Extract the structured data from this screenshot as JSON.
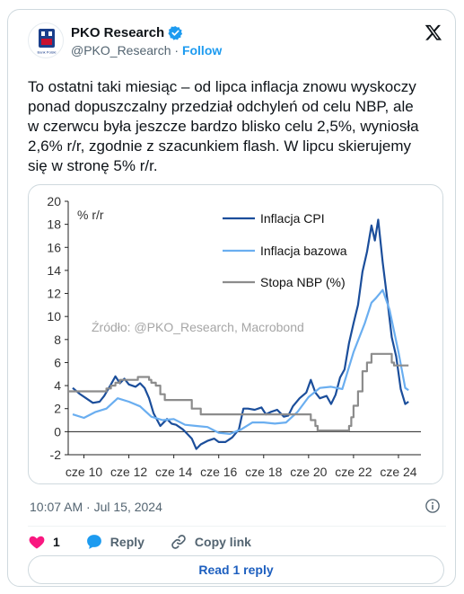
{
  "author": {
    "name": "PKO Research",
    "handle": "@PKO_Research",
    "separator": "·",
    "follow_label": "Follow",
    "avatar_caption": "Bank Polski"
  },
  "tweet": {
    "text": "To ostatni taki miesiąc – od lipca inflacja znowu wyskoczy\nponad dopuszczalny przedział odchyleń od celu NBP, ale\nw czerwcu była jeszcze bardzo blisko celu 2,5%, wyniosła\n2,6% r/r, zgodnie z szacunkiem flash. W lipcu skierujemy\nsię w stronę 5% r/r."
  },
  "colors": {
    "cpi": "#1b4e9b",
    "core": "#6aaef0",
    "rate": "#8c8c8c",
    "link": "#1d9bf0",
    "heart": "#f91880"
  },
  "chart_data": {
    "type": "line",
    "unit_label": "% r/r",
    "source_note": "Źródło: @PKO_Research, Macrobond",
    "ylim": [
      -2,
      20
    ],
    "yticks": [
      "20",
      "18",
      "16",
      "14",
      "12",
      "10",
      "8",
      "6",
      "4",
      "2",
      "0",
      "-2"
    ],
    "xlim": [
      2009.3,
      2025
    ],
    "xticks": [
      {
        "x": 2010,
        "label": "cze 10"
      },
      {
        "x": 2012,
        "label": "cze 12"
      },
      {
        "x": 2014,
        "label": "cze 14"
      },
      {
        "x": 2016,
        "label": "cze 16"
      },
      {
        "x": 2018,
        "label": "cze 18"
      },
      {
        "x": 2020,
        "label": "cze 20"
      },
      {
        "x": 2022,
        "label": "cze 22"
      },
      {
        "x": 2024,
        "label": "cze 24"
      }
    ],
    "legend_position": "top-right",
    "series": [
      {
        "name": "Inflacja CPI",
        "color": "#1b4e9b",
        "width": 2.2,
        "x": [
          2009.5,
          2009.8,
          2010.1,
          2010.4,
          2010.7,
          2010.9,
          2011.2,
          2011.4,
          2011.6,
          2011.8,
          2012.0,
          2012.3,
          2012.5,
          2012.7,
          2012.9,
          2013.1,
          2013.4,
          2013.7,
          2013.9,
          2014.1,
          2014.4,
          2014.6,
          2014.8,
          2015.0,
          2015.2,
          2015.5,
          2015.8,
          2016.0,
          2016.3,
          2016.6,
          2016.9,
          2017.1,
          2017.3,
          2017.6,
          2017.9,
          2018.1,
          2018.3,
          2018.6,
          2018.9,
          2019.1,
          2019.3,
          2019.6,
          2019.9,
          2020.1,
          2020.3,
          2020.5,
          2020.8,
          2021.0,
          2021.2,
          2021.4,
          2021.6,
          2021.8,
          2022.0,
          2022.2,
          2022.4,
          2022.6,
          2022.8,
          2022.95,
          2023.1,
          2023.3,
          2023.5,
          2023.7,
          2023.9,
          2024.1,
          2024.3,
          2024.45
        ],
        "y": [
          3.8,
          3.3,
          2.9,
          2.5,
          2.6,
          3.1,
          4.1,
          4.8,
          4.2,
          4.6,
          4.1,
          3.9,
          4.2,
          3.8,
          2.9,
          1.6,
          0.5,
          1.1,
          0.7,
          0.6,
          0.2,
          -0.2,
          -0.6,
          -1.5,
          -1.1,
          -0.8,
          -0.6,
          -0.9,
          -0.9,
          -0.5,
          0.2,
          2.0,
          2.0,
          1.9,
          2.1,
          1.5,
          1.7,
          1.9,
          1.3,
          1.4,
          2.2,
          2.9,
          3.4,
          4.5,
          3.4,
          2.9,
          3.1,
          2.4,
          3.2,
          4.7,
          5.4,
          7.7,
          9.4,
          11.0,
          13.9,
          15.6,
          17.9,
          16.6,
          18.4,
          14.7,
          11.5,
          8.2,
          6.5,
          3.7,
          2.4,
          2.6
        ]
      },
      {
        "name": "Inflacja bazowa",
        "color": "#6aaef0",
        "width": 2.2,
        "x": [
          2009.5,
          2010.0,
          2010.5,
          2011.0,
          2011.5,
          2012.0,
          2012.5,
          2013.0,
          2013.5,
          2014.0,
          2014.5,
          2015.0,
          2015.5,
          2016.0,
          2016.5,
          2017.0,
          2017.5,
          2018.0,
          2018.5,
          2019.0,
          2019.5,
          2020.0,
          2020.5,
          2021.0,
          2021.5,
          2022.0,
          2022.5,
          2022.8,
          2023.0,
          2023.3,
          2023.6,
          2024.0,
          2024.3,
          2024.45
        ],
        "y": [
          1.5,
          1.2,
          1.7,
          2.0,
          2.9,
          2.6,
          2.2,
          1.3,
          1.0,
          1.1,
          0.6,
          0.5,
          0.4,
          -0.1,
          -0.2,
          0.2,
          0.8,
          0.8,
          0.7,
          0.8,
          1.7,
          3.0,
          3.8,
          3.9,
          3.7,
          6.9,
          9.4,
          11.2,
          11.6,
          12.3,
          10.6,
          6.9,
          3.8,
          3.6
        ]
      },
      {
        "name": "Stopa NBP (%)",
        "color": "#8c8c8c",
        "width": 2.2,
        "step": true,
        "x": [
          2009.3,
          2011.0,
          2011.2,
          2011.4,
          2011.6,
          2012.4,
          2012.9,
          2013.0,
          2013.2,
          2013.4,
          2013.6,
          2014.8,
          2015.2,
          2020.1,
          2020.3,
          2020.4,
          2021.8,
          2021.9,
          2022.0,
          2022.2,
          2022.4,
          2022.6,
          2022.8,
          2023.7,
          2023.8,
          2024.45
        ],
        "y": [
          3.5,
          3.75,
          4.0,
          4.25,
          4.5,
          4.75,
          4.5,
          4.25,
          4.0,
          3.25,
          2.75,
          2.0,
          1.5,
          1.0,
          0.5,
          0.1,
          0.5,
          1.25,
          2.25,
          3.5,
          5.25,
          6.0,
          6.75,
          6.0,
          5.75,
          5.75
        ]
      }
    ]
  },
  "footer": {
    "timestamp": "10:07 AM · Jul 15, 2024",
    "likes": "1",
    "reply_label": "Reply",
    "copy_link_label": "Copy link",
    "read_replies_label": "Read 1 reply"
  }
}
